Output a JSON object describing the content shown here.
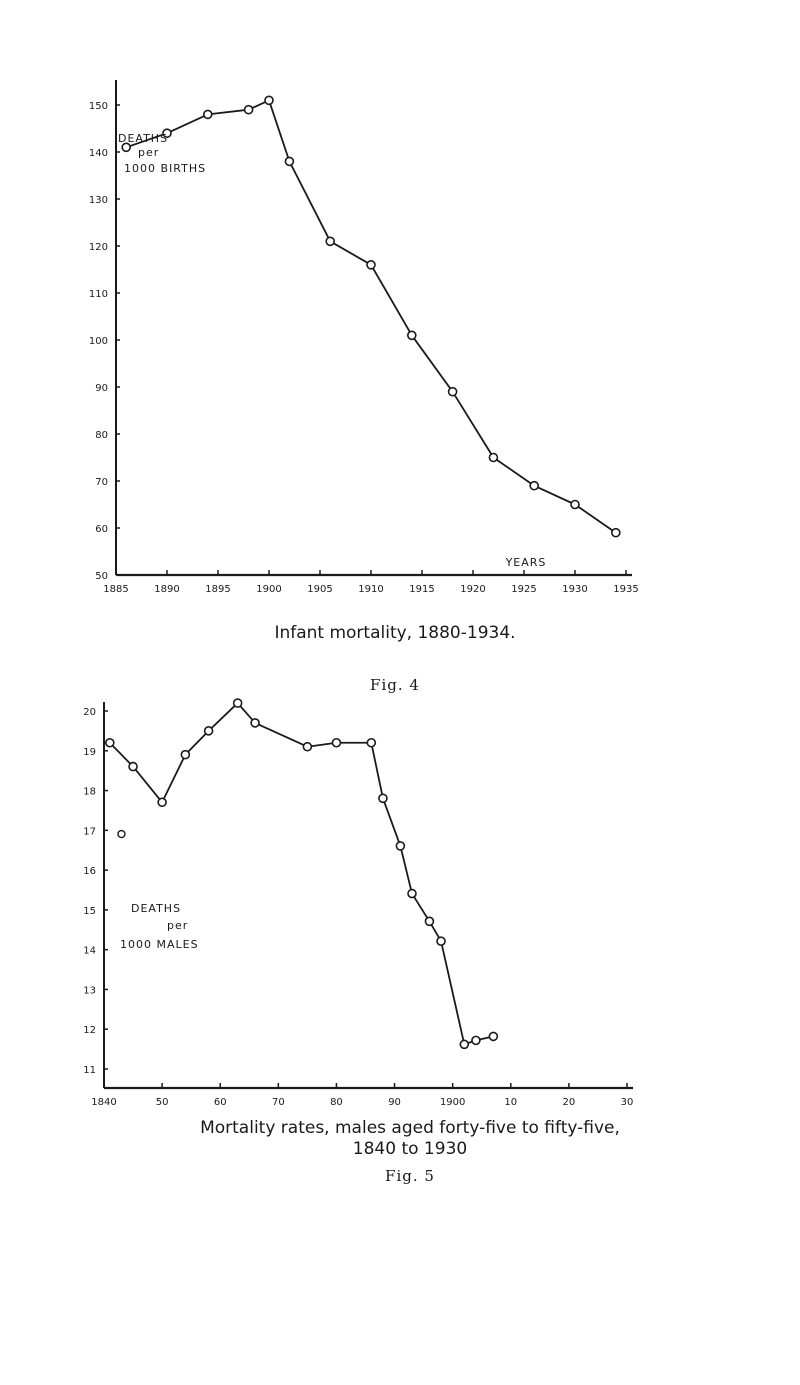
{
  "chart_data": [
    {
      "type": "line",
      "inline_label": [
        "DEATHS",
        "per",
        "1000 BIRTHS"
      ],
      "axis_word": "YEARS",
      "caption": "Infant mortality, 1880-1934.",
      "fig_label": "Fig. 4",
      "ylim": [
        50,
        150
      ],
      "xlim": [
        1885,
        1935
      ],
      "yticks": [
        "150",
        "140",
        "130",
        "120",
        "110",
        "100",
        "90",
        "80",
        "70",
        "60",
        "50"
      ],
      "xticks": [
        "1885",
        "1890",
        "1895",
        "1900",
        "1905",
        "1910",
        "1915",
        "1920",
        "1925",
        "1930",
        "1935"
      ],
      "x": [
        1886,
        1890,
        1894,
        1898,
        1900,
        1902,
        1906,
        1910,
        1914,
        1918,
        1922,
        1926,
        1930,
        1934
      ],
      "y": [
        141,
        144,
        148,
        149,
        151,
        138,
        121,
        116,
        101,
        89,
        75,
        69,
        65,
        59
      ]
    },
    {
      "type": "line",
      "inline_label": [
        "DEATHS",
        "per",
        "1000 MALES"
      ],
      "caption": [
        "Mortality rates, males aged forty-five to fifty-five,",
        "1840 to 1930"
      ],
      "fig_label": "Fig. 5",
      "ylim": [
        10.5,
        20
      ],
      "xlim": [
        1840,
        1930
      ],
      "yticks": [
        "20",
        "19",
        "18",
        "17",
        "16",
        "15",
        "14",
        "13",
        "12",
        "11"
      ],
      "xticks": [
        "1840",
        "50",
        "60",
        "70",
        "80",
        "90",
        "1900",
        "10",
        "20",
        "30"
      ],
      "x": [
        1841,
        1845,
        1850,
        1854,
        1858,
        1863,
        1866,
        1875,
        1880,
        1886,
        1888,
        1891,
        1893,
        1896,
        1898,
        1902,
        1904,
        1907
      ],
      "y": [
        19.2,
        18.6,
        17.7,
        18.9,
        19.5,
        20.2,
        19.7,
        19.1,
        19.2,
        19.2,
        17.8,
        16.6,
        15.4,
        14.7,
        14.2,
        11.6,
        11.7,
        11.8
      ],
      "marker_points": [
        {
          "x": 1843,
          "y": 16.9
        }
      ]
    }
  ]
}
